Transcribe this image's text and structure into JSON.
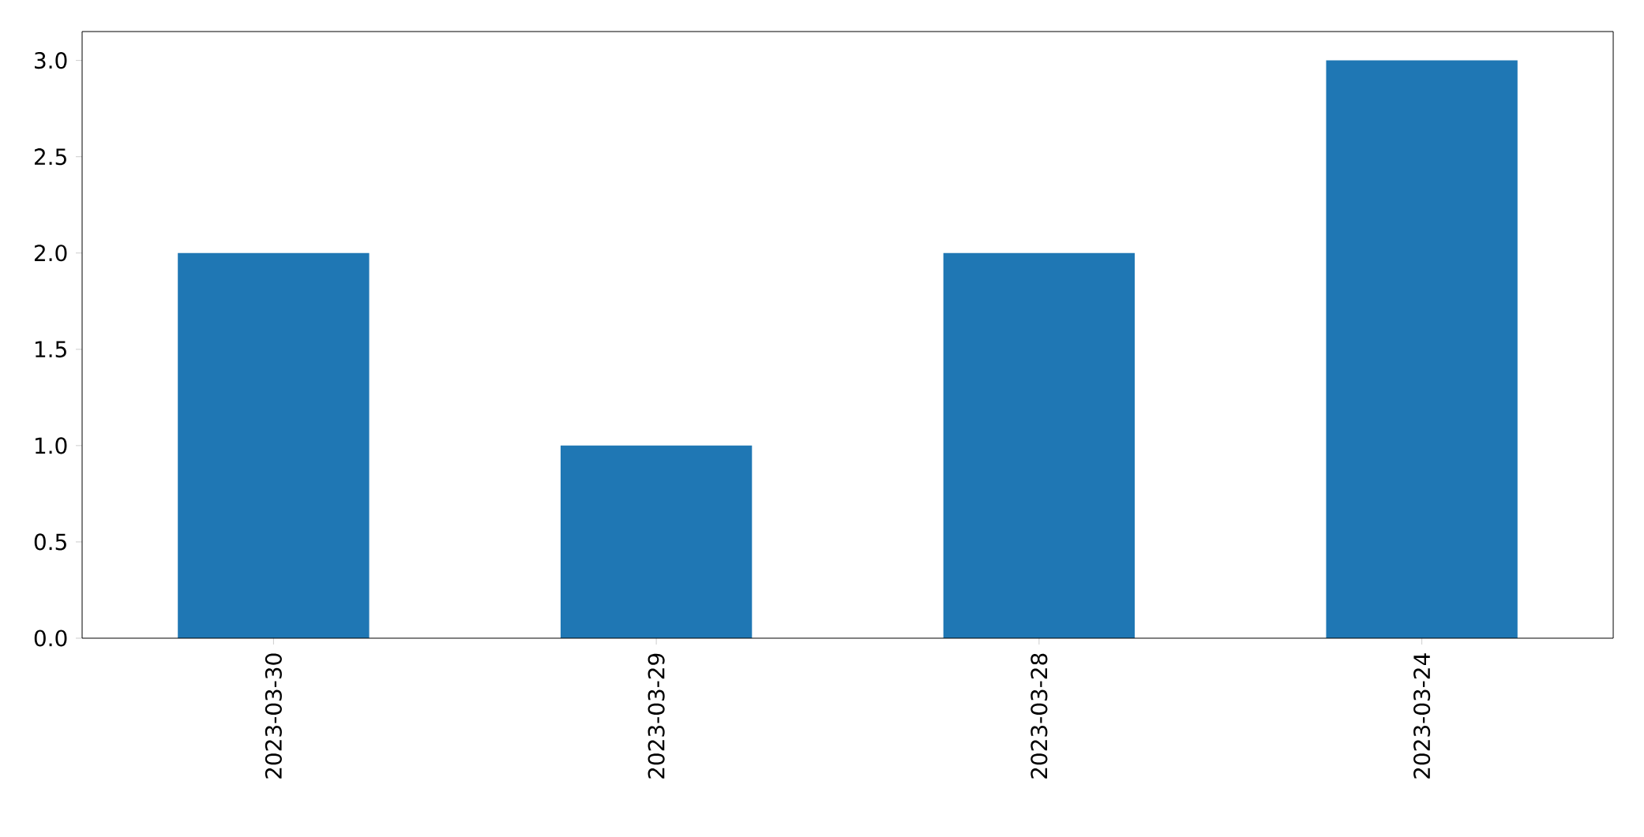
{
  "chart_data": {
    "type": "bar",
    "categories": [
      "2023-03-30",
      "2023-03-29",
      "2023-03-28",
      "2023-03-24"
    ],
    "values": [
      2,
      1,
      2,
      3
    ],
    "color": "#1f77b4",
    "ylim": [
      0,
      3.15
    ],
    "yticks": [
      {
        "value": 0,
        "label": "0.0"
      },
      {
        "value": 0.5,
        "label": "0.5"
      },
      {
        "value": 1,
        "label": "1.0"
      },
      {
        "value": 1.5,
        "label": "1.5"
      },
      {
        "value": 2,
        "label": "2.0"
      },
      {
        "value": 2.5,
        "label": "2.5"
      },
      {
        "value": 3,
        "label": "3.0"
      }
    ]
  }
}
